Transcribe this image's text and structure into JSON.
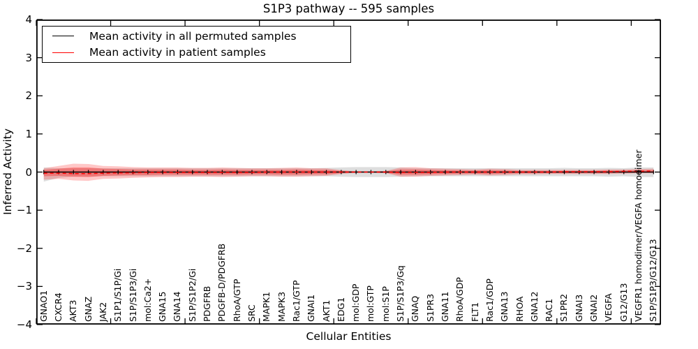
{
  "chart_data": {
    "type": "line",
    "title": "S1P3 pathway -- 595 samples",
    "xlabel": "Cellular Entities",
    "ylabel": "Inferred Activity",
    "ylim": [
      -4,
      4
    ],
    "grid": false,
    "legend_position": "upper left",
    "background_color": "#ffffff",
    "frame_color": "#000000",
    "yticks": [
      {
        "value": 4,
        "label": "4"
      },
      {
        "value": 3,
        "label": "3"
      },
      {
        "value": 2,
        "label": "2"
      },
      {
        "value": 1,
        "label": "1"
      },
      {
        "value": 0,
        "label": "0"
      },
      {
        "value": -1,
        "label": "−1"
      },
      {
        "value": -2,
        "label": "−2"
      },
      {
        "value": -3,
        "label": "−3"
      },
      {
        "value": -4,
        "label": "−4"
      }
    ],
    "xtick_major_every": 5,
    "categories": [
      "GNAO1",
      "CXCR4",
      "AKT3",
      "GNAZ",
      "JAK2",
      "S1P1/S1P/Gi",
      "S1P/S1P3/Gi",
      "mol:Ca2+",
      "GNA15",
      "GNA14",
      "S1P/S1P2/Gi",
      "PDGFRB",
      "PDGFB-D/PDGFRB",
      "RhoA/GTP",
      "SRC",
      "MAPK1",
      "MAPK3",
      "Rac1/GTP",
      "GNAI1",
      "AKT1",
      "EDG1",
      "mol:GDP",
      "mol:GTP",
      "mol:S1P",
      "S1P/S1P3/Gq",
      "GNAQ",
      "S1PR3",
      "GNA11",
      "RhoA/GDP",
      "FLT1",
      "Rac1/GDP",
      "GNA13",
      "RHOA",
      "GNA12",
      "RAC1",
      "S1PR2",
      "GNAI3",
      "GNAI2",
      "VEGFA",
      "G12/G13",
      "VEGFR1 homodimer/VEGFA homodimer",
      "S1P/S1P3/G12/G13"
    ],
    "series": [
      {
        "name": "Mean activity in all permuted samples",
        "color": "#000000",
        "style": "solid",
        "markers": "tick",
        "values": [
          0,
          0,
          0,
          0,
          0,
          0,
          0,
          0,
          0,
          0,
          0,
          0,
          0,
          0,
          0,
          0,
          0,
          0,
          0,
          0,
          0,
          0,
          0,
          0,
          0,
          0,
          0,
          0,
          0,
          0,
          0,
          0,
          0,
          0,
          0,
          0,
          0,
          0,
          0,
          0,
          0,
          0
        ]
      },
      {
        "name": "Mean activity in patient samples",
        "color": "#ff0000",
        "style": "dashed",
        "markers": "none",
        "values": [
          -0.03,
          -0.03,
          -0.04,
          -0.04,
          -0.03,
          -0.02,
          -0.02,
          -0.01,
          -0.01,
          -0.01,
          -0.01,
          -0.01,
          -0.01,
          -0.01,
          -0.01,
          0,
          0,
          0,
          0,
          0,
          0,
          0,
          0,
          0,
          -0.01,
          -0.01,
          -0.01,
          0,
          0,
          0,
          0,
          0,
          0,
          0,
          0,
          0.01,
          0.01,
          0.01,
          0.01,
          0.02,
          0.02,
          0.03
        ]
      }
    ],
    "bands": [
      {
        "name": "permuted-samples-range",
        "color": "#000000",
        "opacity": 0.13,
        "upper": [
          0.12,
          0.1,
          0.1,
          0.1,
          0.1,
          0.1,
          0.1,
          0.1,
          0.1,
          0.1,
          0.1,
          0.1,
          0.1,
          0.1,
          0.1,
          0.1,
          0.1,
          0.1,
          0.1,
          0.11,
          0.12,
          0.13,
          0.13,
          0.13,
          0.12,
          0.1,
          0.1,
          0.1,
          0.1,
          0.1,
          0.1,
          0.1,
          0.1,
          0.1,
          0.1,
          0.11,
          0.1,
          0.1,
          0.11,
          0.1,
          0.12,
          0.12
        ],
        "lower": [
          -0.25,
          -0.15,
          -0.12,
          -0.12,
          -0.11,
          -0.11,
          -0.11,
          -0.11,
          -0.11,
          -0.11,
          -0.11,
          -0.11,
          -0.11,
          -0.11,
          -0.11,
          -0.11,
          -0.11,
          -0.11,
          -0.11,
          -0.11,
          -0.12,
          -0.13,
          -0.13,
          -0.13,
          -0.12,
          -0.11,
          -0.11,
          -0.11,
          -0.11,
          -0.11,
          -0.11,
          -0.11,
          -0.11,
          -0.11,
          -0.11,
          -0.11,
          -0.11,
          -0.11,
          -0.12,
          -0.11,
          -0.13,
          -0.13
        ]
      },
      {
        "name": "patient-samples-range-outer",
        "color": "#ff0000",
        "opacity": 0.22,
        "upper": [
          0.1,
          0.16,
          0.22,
          0.21,
          0.16,
          0.15,
          0.13,
          0.12,
          0.12,
          0.12,
          0.11,
          0.11,
          0.12,
          0.11,
          0.1,
          0.1,
          0.11,
          0.12,
          0.1,
          0.1,
          0.05,
          0.02,
          0.02,
          0.03,
          0.12,
          0.13,
          0.1,
          0.09,
          0.08,
          0.07,
          0.09,
          0.08,
          0.06,
          0.06,
          0.06,
          0.06,
          0.06,
          0.06,
          0.07,
          0.07,
          0.08,
          0.09
        ],
        "lower": [
          -0.2,
          -0.18,
          -0.22,
          -0.23,
          -0.18,
          -0.17,
          -0.15,
          -0.14,
          -0.13,
          -0.13,
          -0.12,
          -0.12,
          -0.13,
          -0.12,
          -0.11,
          -0.11,
          -0.12,
          -0.12,
          -0.11,
          -0.1,
          -0.05,
          -0.02,
          -0.02,
          -0.03,
          -0.12,
          -0.12,
          -0.1,
          -0.09,
          -0.08,
          -0.07,
          -0.09,
          -0.08,
          -0.06,
          -0.06,
          -0.05,
          -0.05,
          -0.05,
          -0.05,
          -0.05,
          -0.04,
          -0.03,
          -0.03
        ]
      },
      {
        "name": "patient-samples-range-inner",
        "color": "#ff0000",
        "opacity": 0.3,
        "upper": [
          0.06,
          0.09,
          0.12,
          0.12,
          0.09,
          0.08,
          0.07,
          0.07,
          0.07,
          0.07,
          0.06,
          0.06,
          0.07,
          0.06,
          0.06,
          0.06,
          0.06,
          0.07,
          0.06,
          0.06,
          0.03,
          0.01,
          0.01,
          0.02,
          0.07,
          0.07,
          0.06,
          0.05,
          0.04,
          0.04,
          0.05,
          0.04,
          0.03,
          0.03,
          0.03,
          0.03,
          0.03,
          0.03,
          0.04,
          0.04,
          0.05,
          0.05
        ],
        "lower": [
          -0.11,
          -0.1,
          -0.12,
          -0.13,
          -0.1,
          -0.09,
          -0.08,
          -0.08,
          -0.07,
          -0.07,
          -0.07,
          -0.07,
          -0.07,
          -0.07,
          -0.06,
          -0.06,
          -0.07,
          -0.07,
          -0.06,
          -0.06,
          -0.03,
          -0.01,
          -0.01,
          -0.02,
          -0.07,
          -0.07,
          -0.06,
          -0.05,
          -0.04,
          -0.04,
          -0.05,
          -0.04,
          -0.03,
          -0.03,
          -0.03,
          -0.03,
          -0.03,
          -0.03,
          -0.03,
          -0.02,
          -0.02,
          -0.02
        ]
      }
    ]
  }
}
